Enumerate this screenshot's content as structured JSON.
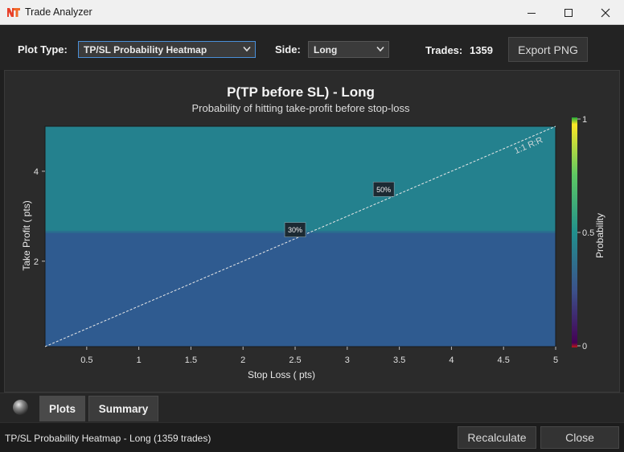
{
  "window": {
    "title": "Trade Analyzer",
    "icon": "app-logo-icon",
    "controls": [
      "minimize-icon",
      "maximize-icon",
      "close-icon"
    ]
  },
  "toolbar": {
    "plot_type_label": "Plot Type:",
    "plot_type_value": "TP/SL Probability Heatmap",
    "side_label": "Side:",
    "side_value": "Long",
    "trades_label": "Trades:",
    "trades_value": "1359",
    "export_label": "Export PNG"
  },
  "tabs": [
    {
      "label": "Plots",
      "active": true
    },
    {
      "label": "Summary",
      "active": false
    }
  ],
  "status": {
    "text": "TP/SL Probability Heatmap - Long (1359 trades)",
    "recalculate_label": "Recalculate",
    "close_label": "Close"
  },
  "colors": {
    "heat_upper": "#24818e",
    "heat_lower": "#2f5b90",
    "accent_focus": "#4a8fd8"
  },
  "chart_data": {
    "type": "heatmap",
    "title": "P(TP before SL) - Long",
    "subtitle": "Probability of hitting take-profit before stop-loss",
    "xlabel": "Stop Loss ( pts)",
    "ylabel": "Take Profit ( pts)",
    "xlim": [
      0.1,
      5
    ],
    "ylim": [
      0.1,
      5
    ],
    "x_ticks": [
      0.5,
      1,
      1.5,
      2,
      2.5,
      3,
      3.5,
      4,
      4.5,
      5
    ],
    "x_tick_labels": [
      "0.5",
      "1",
      "1.5",
      "2",
      "2.5",
      "3",
      "3.5",
      "4",
      "4.5",
      "5"
    ],
    "y_ticks": [
      2,
      4
    ],
    "y_tick_labels": [
      "2",
      "4"
    ],
    "regions": [
      {
        "tp_min": 2.65,
        "tp_max": 5,
        "probability": 0.46
      },
      {
        "tp_min": 0.1,
        "tp_max": 2.65,
        "probability": 0.29
      }
    ],
    "reference_line": {
      "label": "1:1 R:R",
      "x": [
        0.1,
        5
      ],
      "y": [
        0.1,
        5
      ]
    },
    "annotations": [
      {
        "text": "30%",
        "x": 2.5,
        "y": 2.7
      },
      {
        "text": "50%",
        "x": 3.35,
        "y": 3.6
      }
    ],
    "colorbar": {
      "label": "Probability",
      "min": 0,
      "max": 1,
      "ticks": [
        0,
        0.5,
        1
      ],
      "tick_labels": [
        "0",
        "0.5",
        "1"
      ]
    },
    "grid": false
  }
}
